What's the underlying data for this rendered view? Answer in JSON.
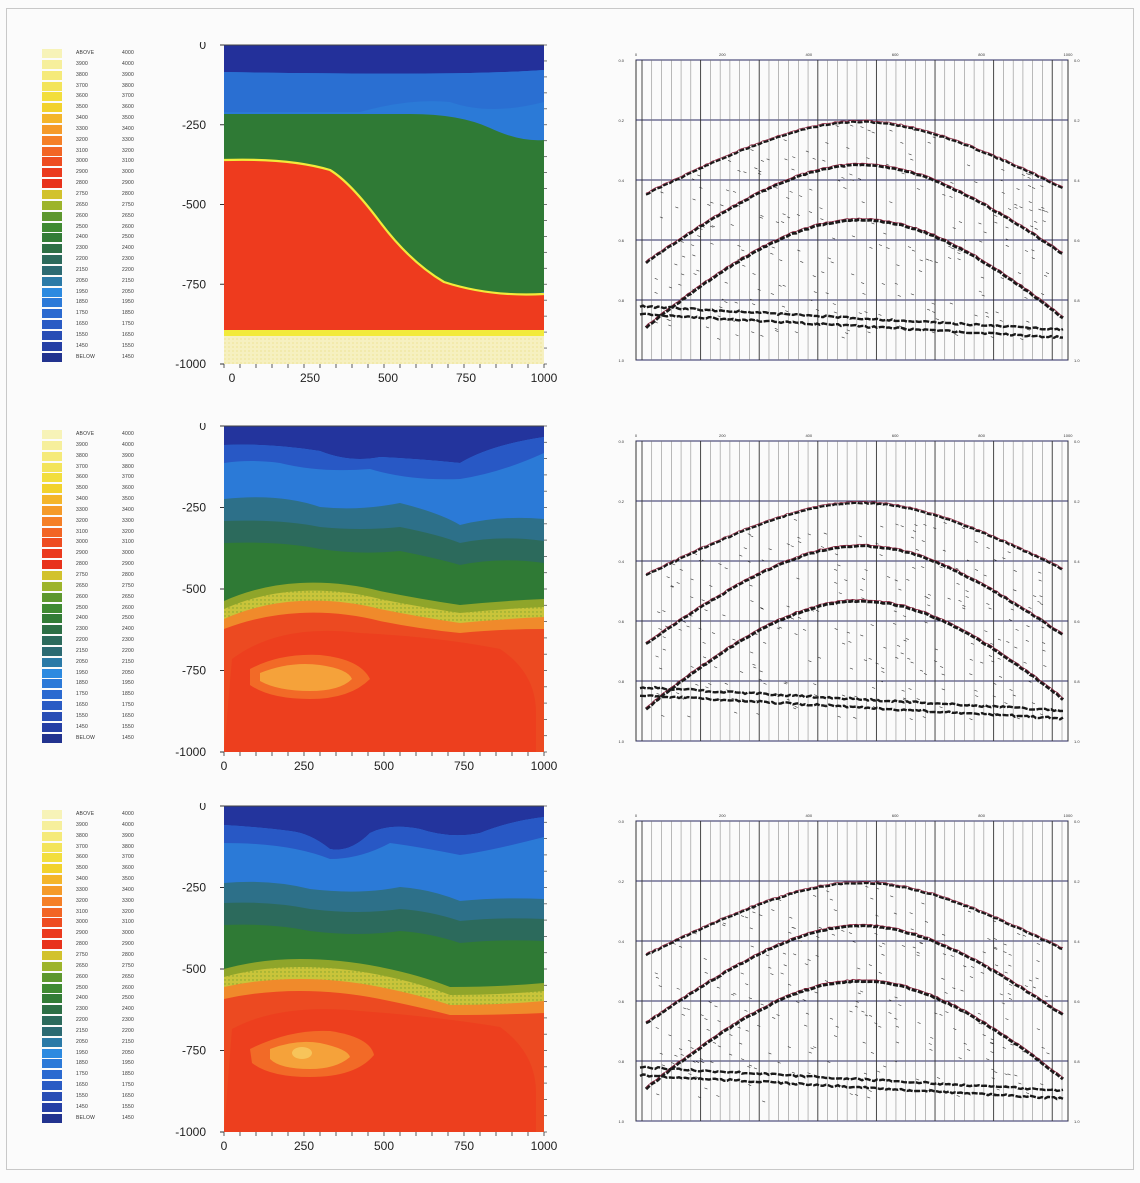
{
  "colors": {
    "dark_blue": "#23309a",
    "mid_blue": "#2b5fcf",
    "light_blue": "#2f86e6",
    "teal": "#2d6f6a",
    "green": "#2f7a35",
    "olive": "#8fa52a",
    "yellow": "#f2ea3a",
    "orange": "#f78a27",
    "red": "#ee3b1e",
    "cream": "#f7f0c2"
  },
  "legend": {
    "entries": [
      {
        "label": "ABOVE",
        "value": "4000",
        "color": "#f7f3b8"
      },
      {
        "label": "3900",
        "value": "4000",
        "color": "#f6ef9c"
      },
      {
        "label": "3800",
        "value": "3900",
        "color": "#f5ea7a"
      },
      {
        "label": "3700",
        "value": "3800",
        "color": "#f3e45a"
      },
      {
        "label": "3600",
        "value": "3700",
        "color": "#f2de3c"
      },
      {
        "label": "3500",
        "value": "3600",
        "color": "#f2d22c"
      },
      {
        "label": "3400",
        "value": "3500",
        "color": "#f4b52a"
      },
      {
        "label": "3300",
        "value": "3400",
        "color": "#f59a29"
      },
      {
        "label": "3200",
        "value": "3300",
        "color": "#f57f27"
      },
      {
        "label": "3100",
        "value": "3200",
        "color": "#f26525"
      },
      {
        "label": "3000",
        "value": "3100",
        "color": "#ee4c21"
      },
      {
        "label": "2900",
        "value": "3000",
        "color": "#eb3a1e"
      },
      {
        "label": "2800",
        "value": "2900",
        "color": "#e8321c"
      },
      {
        "label": "2750",
        "value": "2800",
        "color": "#d2c22c"
      },
      {
        "label": "2650",
        "value": "2750",
        "color": "#9db42b"
      },
      {
        "label": "2600",
        "value": "2650",
        "color": "#5d972e"
      },
      {
        "label": "2500",
        "value": "2600",
        "color": "#3f8a32"
      },
      {
        "label": "2400",
        "value": "2500",
        "color": "#327c36"
      },
      {
        "label": "2300",
        "value": "2400",
        "color": "#2d6f45"
      },
      {
        "label": "2200",
        "value": "2300",
        "color": "#2c6a5c"
      },
      {
        "label": "2150",
        "value": "2200",
        "color": "#2c6a72"
      },
      {
        "label": "2050",
        "value": "2150",
        "color": "#2b7aa7"
      },
      {
        "label": "1950",
        "value": "2050",
        "color": "#2c8ae0"
      },
      {
        "label": "1850",
        "value": "1950",
        "color": "#2c7ad8"
      },
      {
        "label": "1750",
        "value": "1850",
        "color": "#2b6ad0"
      },
      {
        "label": "1650",
        "value": "1750",
        "color": "#2a5bc4"
      },
      {
        "label": "1550",
        "value": "1650",
        "color": "#284db5"
      },
      {
        "label": "1450",
        "value": "1550",
        "color": "#253fa5"
      },
      {
        "label": "BELOW",
        "value": "1450",
        "color": "#22338f"
      }
    ]
  },
  "velocity_axis": {
    "y_ticks": [
      "0",
      "-250",
      "-500",
      "-750",
      "-1000"
    ],
    "x_ticks": [
      "0",
      "250",
      "500",
      "750",
      "1000"
    ]
  },
  "gather_axis": {
    "top_ticks": [
      "0",
      "200",
      "400",
      "600",
      "800",
      "1000"
    ],
    "time_ticks": [
      "0.0",
      "0.2",
      "0.4",
      "0.6",
      "0.8",
      "1.0"
    ]
  },
  "chart_data": [
    {
      "type": "heatmap",
      "panel": "velocity model 1",
      "x_ticks": [
        0,
        250,
        500,
        750,
        1000
      ],
      "y_ticks": [
        0,
        -250,
        -500,
        -750,
        -1000
      ],
      "xlim": [
        0,
        1000
      ],
      "ylim": [
        -1000,
        0
      ]
    },
    {
      "type": "line",
      "panel": "seismic gather 1",
      "x_ticks": [
        0,
        200,
        400,
        600,
        800,
        1000
      ],
      "y_ticks": [
        0.0,
        0.2,
        0.4,
        0.6,
        0.8,
        1.0
      ]
    },
    {
      "type": "heatmap",
      "panel": "velocity model 2",
      "x_ticks": [
        0,
        250,
        500,
        750,
        1000
      ],
      "y_ticks": [
        0,
        -250,
        -500,
        -750,
        -1000
      ],
      "xlim": [
        0,
        1000
      ],
      "ylim": [
        -1000,
        0
      ]
    },
    {
      "type": "line",
      "panel": "seismic gather 2",
      "x_ticks": [
        0,
        200,
        400,
        600,
        800,
        1000
      ],
      "y_ticks": [
        0.0,
        0.2,
        0.4,
        0.6,
        0.8,
        1.0
      ]
    },
    {
      "type": "heatmap",
      "panel": "velocity model 3",
      "x_ticks": [
        0,
        250,
        500,
        750,
        1000
      ],
      "y_ticks": [
        0,
        -250,
        -500,
        -750,
        -1000
      ],
      "xlim": [
        0,
        1000
      ],
      "ylim": [
        -1000,
        0
      ]
    },
    {
      "type": "line",
      "panel": "seismic gather 3",
      "x_ticks": [
        0,
        200,
        400,
        600,
        800,
        1000
      ],
      "y_ticks": [
        0.0,
        0.2,
        0.4,
        0.6,
        0.8,
        1.0
      ]
    }
  ]
}
